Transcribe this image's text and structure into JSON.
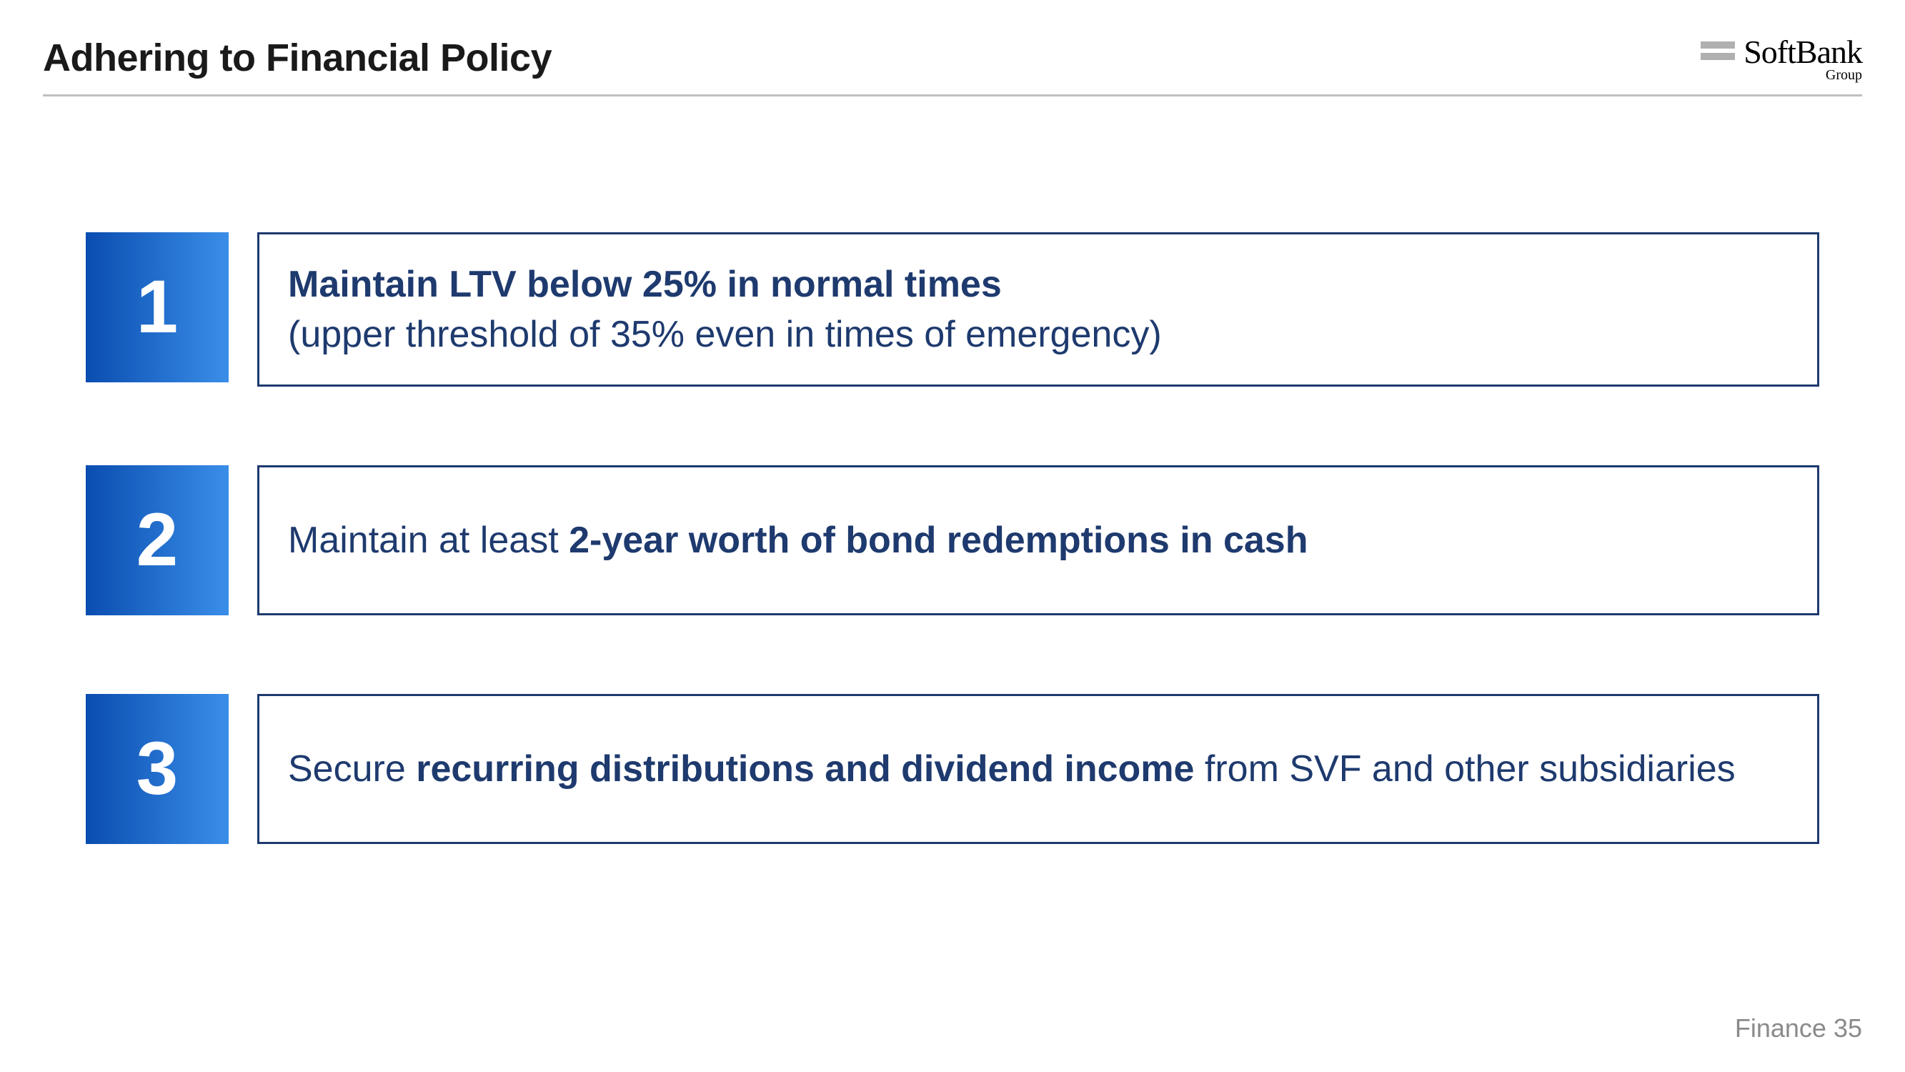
{
  "page_title": "Adhering to Financial Policy",
  "logo": {
    "main": "SoftBank",
    "sub": "Group"
  },
  "policies": [
    {
      "number": "1",
      "line1_bold": "Maintain LTV below 25% in normal times",
      "line2_normal": "(upper threshold of 35% even in times of emergency)"
    },
    {
      "number": "2",
      "prefix_normal": "Maintain at least ",
      "suffix_bold": "2-year worth of bond redemptions in cash"
    },
    {
      "number": "3",
      "prefix_normal": "Secure ",
      "mid_bold": "recurring distributions and dividend income",
      "suffix_normal": " from SVF and other subsidiaries"
    }
  ],
  "footer": "Finance 35",
  "styling": {
    "title_fontsize": 54,
    "title_color": "#1a1a1a",
    "divider_color": "#c0c0c0",
    "number_box_gradient_from": "#0a4db0",
    "number_box_gradient_to": "#3a8ee8",
    "number_box_width": 200,
    "number_box_height": 210,
    "number_fontsize": 105,
    "number_color": "#ffffff",
    "text_box_border_color": "#1e3a6e",
    "text_box_border_width": 3,
    "text_fontsize": 52,
    "text_color": "#1e3a6e",
    "item_gap": 110,
    "footer_color": "#8a8a8a",
    "footer_fontsize": 36,
    "logo_bar_color": "#b0b0b0",
    "background_color": "#ffffff"
  }
}
